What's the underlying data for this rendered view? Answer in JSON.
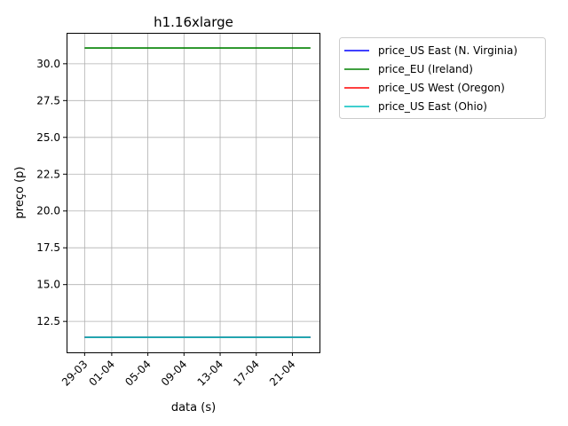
{
  "chart_data": {
    "type": "line",
    "title": "h1.16xlarge",
    "xlabel": "data (s)",
    "ylabel": "preço (p)",
    "x_tick_labels": [
      "29-03",
      "01-04",
      "05-04",
      "09-04",
      "13-04",
      "17-04",
      "21-04"
    ],
    "x": [
      "2023-03-29",
      "2023-04-23"
    ],
    "xlim": [
      "2023-03-27",
      "2023-04-24"
    ],
    "y_tick_labels": [
      "12.5",
      "15.0",
      "17.5",
      "20.0",
      "22.5",
      "25.0",
      "27.5",
      "30.0"
    ],
    "ylim": [
      10.4,
      32.1
    ],
    "grid": true,
    "legend_position": "outside-top-right",
    "series": [
      {
        "name": "price_US East (N. Virginia)",
        "color": "#0000ff",
        "values": [
          11.42,
          11.42
        ]
      },
      {
        "name": "price_EU (Ireland)",
        "color": "#008000",
        "values": [
          31.07,
          31.07
        ]
      },
      {
        "name": "price_US West (Oregon)",
        "color": "#ff0000",
        "values": [
          11.42,
          11.42
        ]
      },
      {
        "name": "price_US East (Ohio)",
        "color": "#00bfbf",
        "values": [
          11.42,
          11.42
        ]
      }
    ]
  }
}
